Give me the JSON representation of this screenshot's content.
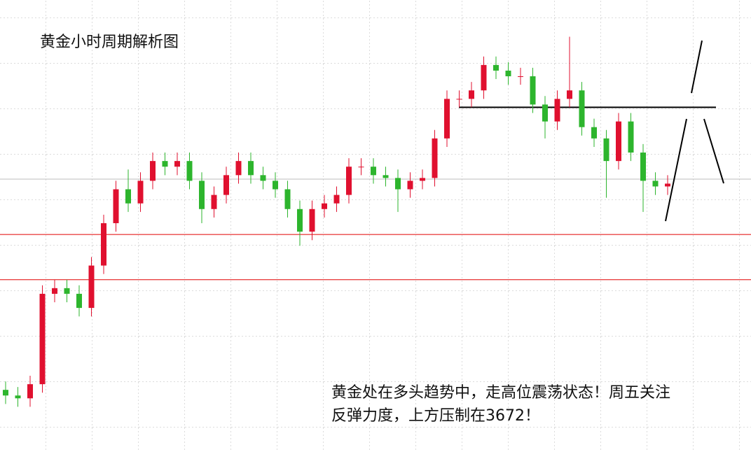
{
  "chart_data": {
    "type": "candlestick",
    "title": "黄金小时周期解析图",
    "annotation": [
      "黄金处在多头趋势中，走高位震荡状态！周五关注",
      "反弹力度，上方压制在3672！"
    ],
    "ylim": [
      3540,
      3700
    ],
    "up_color": "#e0102f",
    "down_color": "#2db52d",
    "open": [
      3562,
      3560,
      3559,
      3564,
      3596,
      3598,
      3596,
      3591,
      3606,
      3621,
      3633,
      3628,
      3636,
      3643,
      3641,
      3643,
      3636,
      3626,
      3631,
      3638,
      3643,
      3638,
      3636,
      3633,
      3626,
      3618,
      3626,
      3628,
      3631,
      3641,
      3641,
      3638,
      3637,
      3633,
      3636,
      3637,
      3651,
      3665,
      3665,
      3668,
      3677,
      3675,
      3673,
      3673,
      3663,
      3657,
      3665,
      3668,
      3655,
      3651,
      3643,
      3657,
      3646,
      3636,
      3634
    ],
    "high": [
      3565,
      3563,
      3567,
      3599,
      3601,
      3601,
      3599,
      3609,
      3624,
      3636,
      3640,
      3639,
      3646,
      3646,
      3646,
      3646,
      3639,
      3634,
      3641,
      3646,
      3646,
      3641,
      3639,
      3636,
      3629,
      3629,
      3631,
      3634,
      3644,
      3644,
      3644,
      3641,
      3640,
      3639,
      3640,
      3654,
      3668,
      3668,
      3671,
      3680,
      3680,
      3678,
      3676,
      3676,
      3666,
      3668,
      3687,
      3671,
      3658,
      3654,
      3660,
      3660,
      3649,
      3639,
      3638
    ],
    "low": [
      3557,
      3556,
      3556,
      3561,
      3593,
      3593,
      3588,
      3588,
      3603,
      3618,
      3625,
      3625,
      3633,
      3638,
      3638,
      3633,
      3621,
      3623,
      3628,
      3635,
      3635,
      3633,
      3630,
      3623,
      3613,
      3615,
      3623,
      3625,
      3628,
      3638,
      3635,
      3634,
      3625,
      3630,
      3633,
      3634,
      3648,
      3662,
      3662,
      3665,
      3672,
      3670,
      3670,
      3660,
      3651,
      3654,
      3662,
      3652,
      3648,
      3630,
      3640,
      3643,
      3625,
      3631,
      3631
    ],
    "close": [
      3560,
      3559,
      3564,
      3596,
      3598,
      3596,
      3591,
      3606,
      3621,
      3633,
      3628,
      3636,
      3643,
      3641,
      3643,
      3636,
      3626,
      3631,
      3638,
      3643,
      3638,
      3636,
      3633,
      3626,
      3618,
      3626,
      3628,
      3631,
      3641,
      3641,
      3638,
      3637,
      3633,
      3636,
      3637,
      3651,
      3665,
      3665,
      3668,
      3677,
      3675,
      3673,
      3673,
      3663,
      3657,
      3665,
      3668,
      3655,
      3651,
      3643,
      3657,
      3646,
      3636,
      3634,
      3635
    ],
    "levels": [
      {
        "value": 3617,
        "color": "#e00000"
      },
      {
        "value": 3601,
        "color": "#e00000"
      },
      {
        "value": 3662,
        "color": "#000000"
      }
    ]
  }
}
